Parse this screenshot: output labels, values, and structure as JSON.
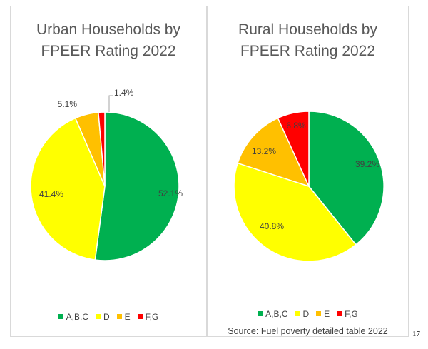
{
  "colors": {
    "green": "#00b050",
    "yellow": "#ffff00",
    "orange": "#ffc000",
    "red": "#ff0000"
  },
  "chart_data": [
    {
      "type": "pie",
      "title_line1": "Urban Households by",
      "title_line2": "FPEER Rating 2022",
      "categories": [
        "A,B,C",
        "D",
        "E",
        "F,G"
      ],
      "values": [
        52.1,
        41.4,
        5.1,
        1.4
      ],
      "labels": [
        "52.1%",
        "41.4%",
        "5.1%",
        "1.4%"
      ],
      "legend": [
        "A,B,C",
        "D",
        "E",
        "F,G"
      ],
      "legend_position": "bottom"
    },
    {
      "type": "pie",
      "title_line1": "Rural Households by",
      "title_line2": "FPEER Rating 2022",
      "categories": [
        "A,B,C",
        "D",
        "E",
        "F,G"
      ],
      "values": [
        39.2,
        40.8,
        13.2,
        6.8
      ],
      "labels": [
        "39.2%",
        "40.8%",
        "13.2%",
        "6.8%"
      ],
      "legend": [
        "A,B,C",
        "D",
        "E",
        "F,G"
      ],
      "legend_position": "bottom"
    }
  ],
  "source": "Source: Fuel poverty detailed table 2022",
  "page_number": "17"
}
